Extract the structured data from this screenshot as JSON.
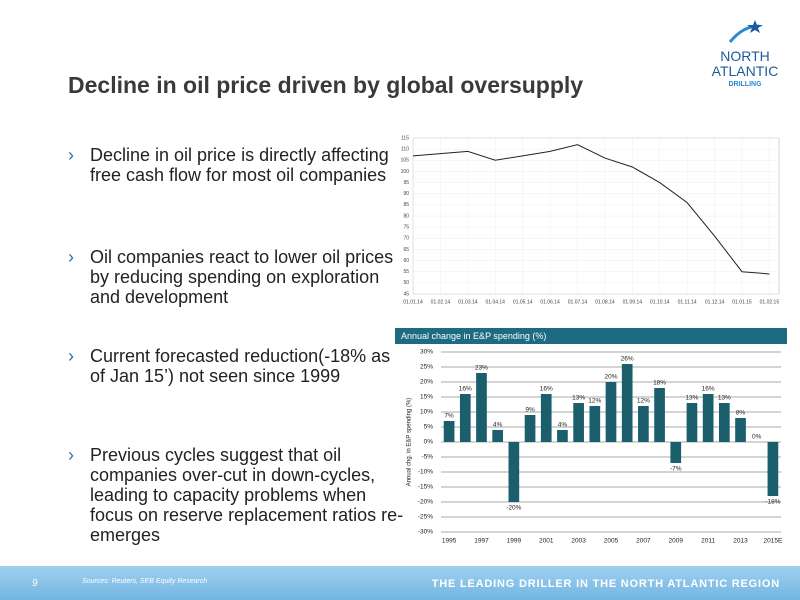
{
  "title": "Decline in oil price driven by global oversupply",
  "logo": {
    "line1": "NORTH",
    "line2": "ATLANTIC",
    "line3": "DRILLING"
  },
  "bullets": [
    "Decline in oil price is directly affecting free cash flow for most oil companies",
    "Oil companies react to lower oil prices by reducing spending on exploration and development",
    "Current forecasted reduction(-18% as of Jan 15’) not seen since 1999",
    "Previous cycles suggest that oil companies over-cut in down-cycles, leading to capacity problems when focus on reserve replacement ratios re-emerges"
  ],
  "footer": {
    "page": "9",
    "sources": "Sources: Reuters, SEB Equity Research",
    "tagline": "THE LEADING DRILLER IN THE NORTH ATLANTIC REGION"
  },
  "chart_data": [
    {
      "type": "line",
      "categories": [
        "01.01.14",
        "01.02.14",
        "01.03.14",
        "01.04.14",
        "01.05.14",
        "01.06.14",
        "01.07.14",
        "01.08.14",
        "01.09.14",
        "01.10.14",
        "01.11.14",
        "01.12.14",
        "01.01.15",
        "01.02.15"
      ],
      "values": [
        107,
        108,
        109,
        105,
        107,
        109,
        112,
        106,
        102,
        95,
        86,
        71,
        55,
        54
      ],
      "color": "#222222",
      "ylim": [
        45,
        115
      ],
      "yticks": [
        45,
        50,
        55,
        60,
        65,
        70,
        75,
        80,
        85,
        90,
        95,
        100,
        105,
        110,
        115
      ],
      "grid": true
    },
    {
      "type": "bar",
      "title": "Annual change in E&P spending (%)",
      "ylabel": "Annual chg. in E&P spending (%)",
      "categories": [
        "1995",
        null,
        "1997",
        null,
        "1999",
        null,
        "2001",
        null,
        "2003",
        null,
        "2005",
        null,
        "2007",
        null,
        "2009",
        null,
        "2011",
        null,
        "2013",
        null,
        "2015E"
      ],
      "values": [
        7,
        16,
        23,
        4,
        -20,
        9,
        16,
        4,
        13,
        12,
        20,
        26,
        12,
        18,
        -7,
        13,
        16,
        13,
        8,
        0,
        -18
      ],
      "value_labels": [
        "7%",
        "16%",
        "23%",
        "4%",
        "-20%",
        "9%",
        "16%",
        "4%",
        "13%",
        "12%",
        "20%",
        "26%",
        "12%",
        "18%",
        "-7%",
        "13%",
        "16%",
        "13%",
        "8%",
        "0%",
        "-18%"
      ],
      "color": "#1b5f6c",
      "ylim": [
        -30,
        30
      ],
      "yticks": [
        {
          "value": -30,
          "label": "-30%"
        },
        {
          "value": -25,
          "label": "-25%"
        },
        {
          "value": -20,
          "label": "-20%"
        },
        {
          "value": -15,
          "label": "-15%"
        },
        {
          "value": -10,
          "label": "-10%"
        },
        {
          "value": -5,
          "label": "-5%"
        },
        {
          "value": 0,
          "label": "0%"
        },
        {
          "value": 5,
          "label": "5%"
        },
        {
          "value": 10,
          "label": "10%"
        },
        {
          "value": 15,
          "label": "15%"
        },
        {
          "value": 20,
          "label": "20%"
        },
        {
          "value": 25,
          "label": "25%"
        },
        {
          "value": 30,
          "label": "30%"
        }
      ],
      "grid": true
    }
  ]
}
